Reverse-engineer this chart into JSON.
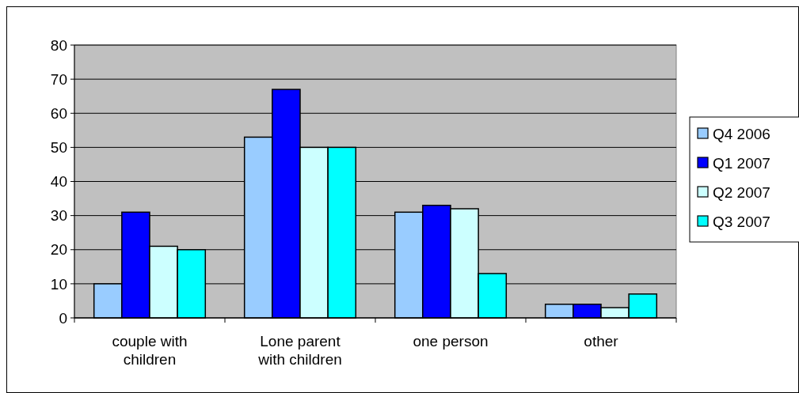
{
  "chart_data": {
    "type": "bar",
    "categories": [
      "couple with children",
      "Lone parent with children",
      "one person",
      "other"
    ],
    "series": [
      {
        "name": "Q4 2006",
        "color": "#99ccff",
        "values": [
          10,
          53,
          31,
          4
        ]
      },
      {
        "name": "Q1 2007",
        "color": "#0000ff",
        "values": [
          31,
          67,
          33,
          4
        ]
      },
      {
        "name": "Q2 2007",
        "color": "#ccffff",
        "values": [
          21,
          50,
          32,
          3
        ]
      },
      {
        "name": "Q3 2007",
        "color": "#00ffff",
        "values": [
          20,
          50,
          13,
          7
        ]
      }
    ],
    "ylim": [
      0,
      80
    ],
    "yticks": [
      0,
      10,
      20,
      30,
      40,
      50,
      60,
      70,
      80
    ],
    "grid": "y",
    "legend": "right"
  }
}
